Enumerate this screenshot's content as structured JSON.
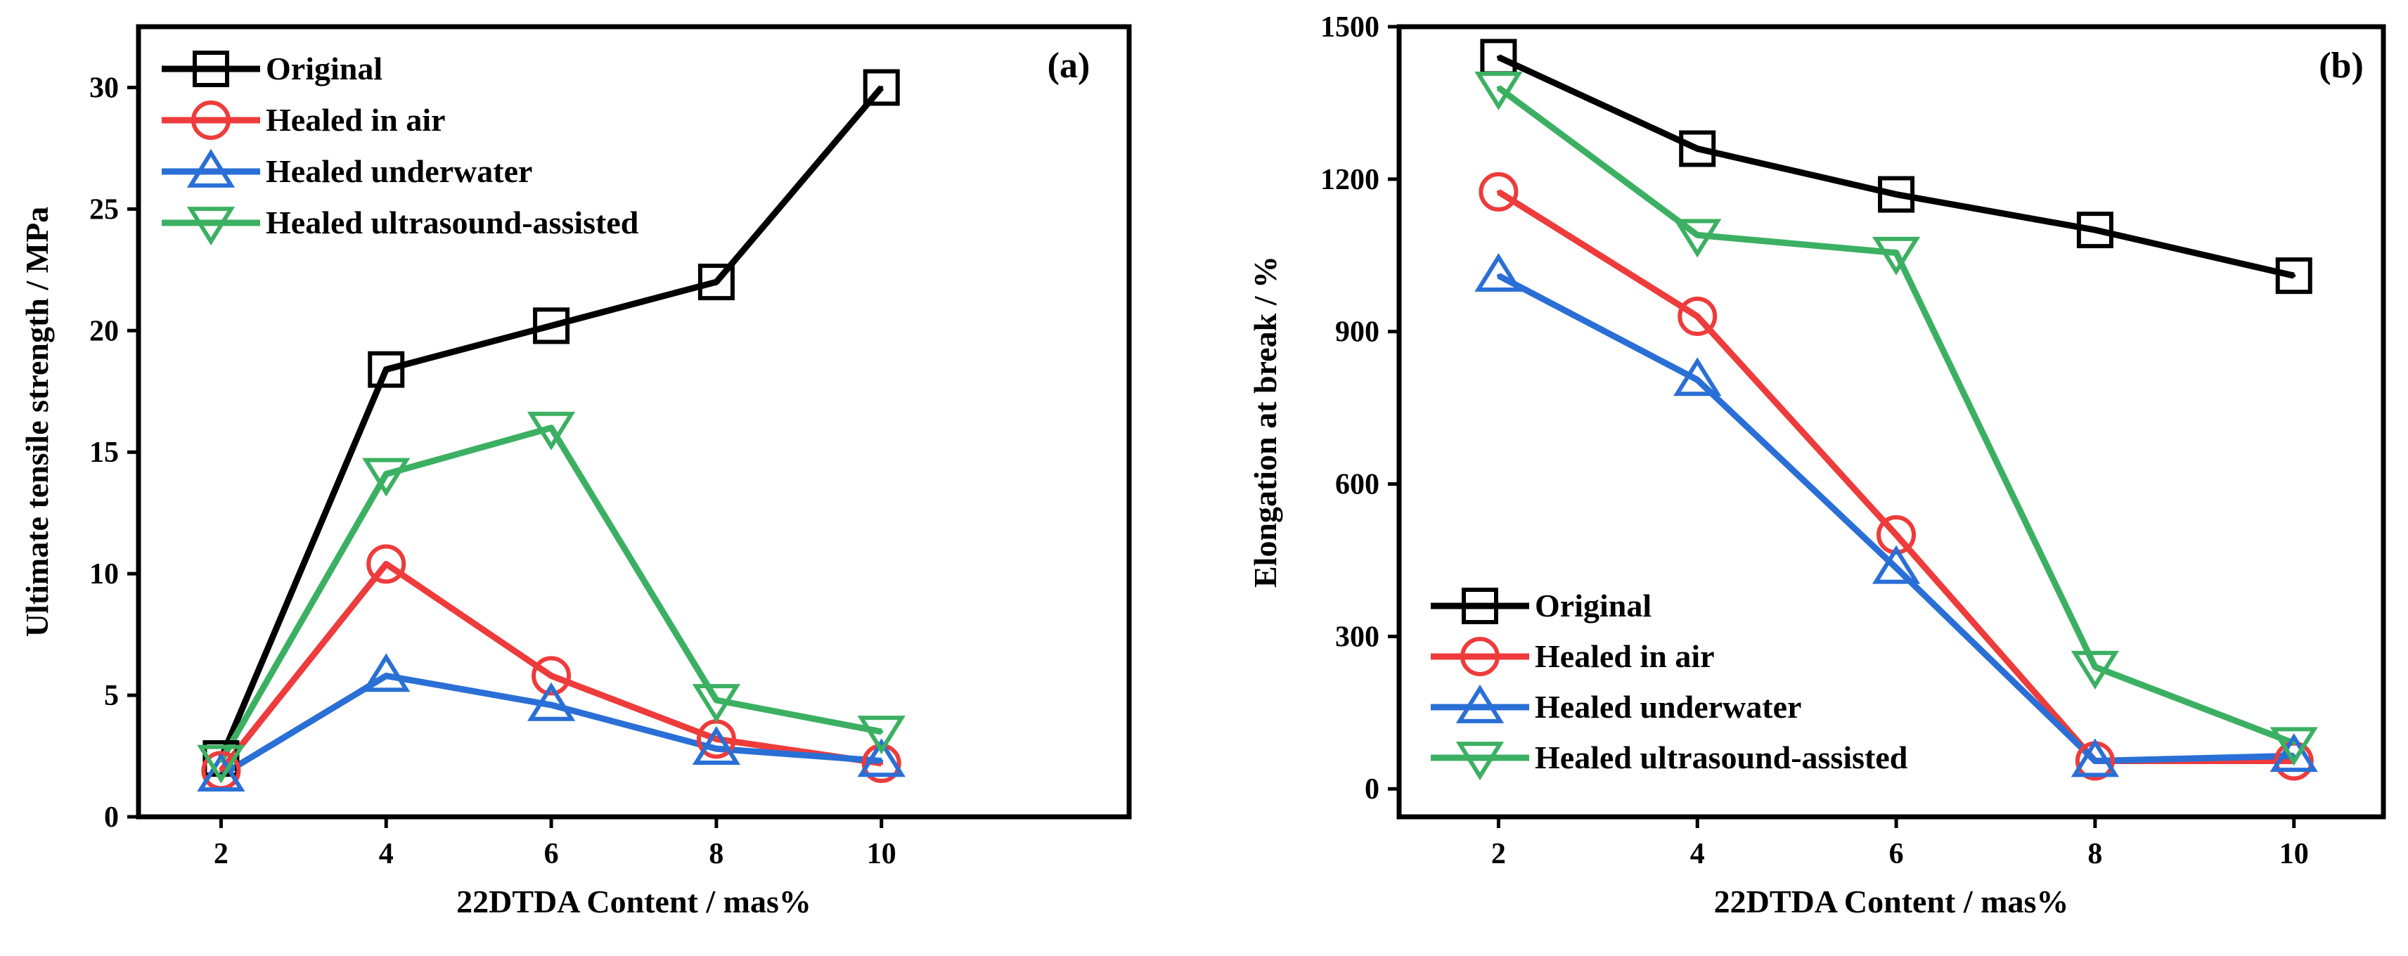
{
  "colors": {
    "original": "#000000",
    "air": "#ee3b3b",
    "underwater": "#2a6fd6",
    "ultrasound": "#3cb062",
    "axis": "#000000"
  },
  "legend_labels": [
    "Original",
    "Healed in air",
    "Healed underwater",
    "Healed ultrasound-assisted"
  ],
  "chart_data": [
    {
      "type": "line",
      "panel_label": "(a)",
      "title": "",
      "xlabel": "22DTDA Content / mas%",
      "ylabel": "Ultimate tensile strength / MPa",
      "x": [
        2,
        4,
        6,
        8,
        10
      ],
      "xlim": [
        1,
        13
      ],
      "ylim": [
        0,
        32.5
      ],
      "xticks": [
        2,
        4,
        6,
        8,
        10
      ],
      "yticks": [
        0,
        5,
        10,
        15,
        20,
        25,
        30
      ],
      "legend_position": "top-left",
      "series": [
        {
          "name": "Original",
          "marker": "square",
          "values": [
            2.4,
            18.4,
            20.2,
            22.0,
            30.0
          ]
        },
        {
          "name": "Healed in air",
          "marker": "circle",
          "values": [
            1.9,
            10.4,
            5.8,
            3.2,
            2.2
          ]
        },
        {
          "name": "Healed underwater",
          "marker": "triangle-up",
          "values": [
            1.7,
            5.8,
            4.6,
            2.8,
            2.3
          ]
        },
        {
          "name": "Healed ultrasound-assisted",
          "marker": "triangle-down",
          "values": [
            2.3,
            14.1,
            16.0,
            4.8,
            3.5
          ]
        }
      ]
    },
    {
      "type": "line",
      "panel_label": "(b)",
      "title": "",
      "xlabel": "22DTDA Content / mas%",
      "ylabel": "Elongation at break / %",
      "x": [
        2,
        4,
        6,
        8,
        10
      ],
      "xlim": [
        1,
        10.9
      ],
      "ylim": [
        -55,
        1500
      ],
      "xticks": [
        2,
        4,
        6,
        8,
        10
      ],
      "yticks": [
        0,
        300,
        600,
        900,
        1200,
        1500
      ],
      "legend_position": "bottom-left",
      "series": [
        {
          "name": "Original",
          "marker": "square",
          "values": [
            1440,
            1260,
            1170,
            1100,
            1010
          ]
        },
        {
          "name": "Healed in air",
          "marker": "circle",
          "values": [
            1175,
            930,
            500,
            55,
            55
          ]
        },
        {
          "name": "Healed underwater",
          "marker": "triangle-up",
          "values": [
            1010,
            805,
            435,
            55,
            65
          ]
        },
        {
          "name": "Healed ultrasound-assisted",
          "marker": "triangle-down",
          "values": [
            1380,
            1090,
            1055,
            240,
            90
          ]
        }
      ]
    }
  ]
}
